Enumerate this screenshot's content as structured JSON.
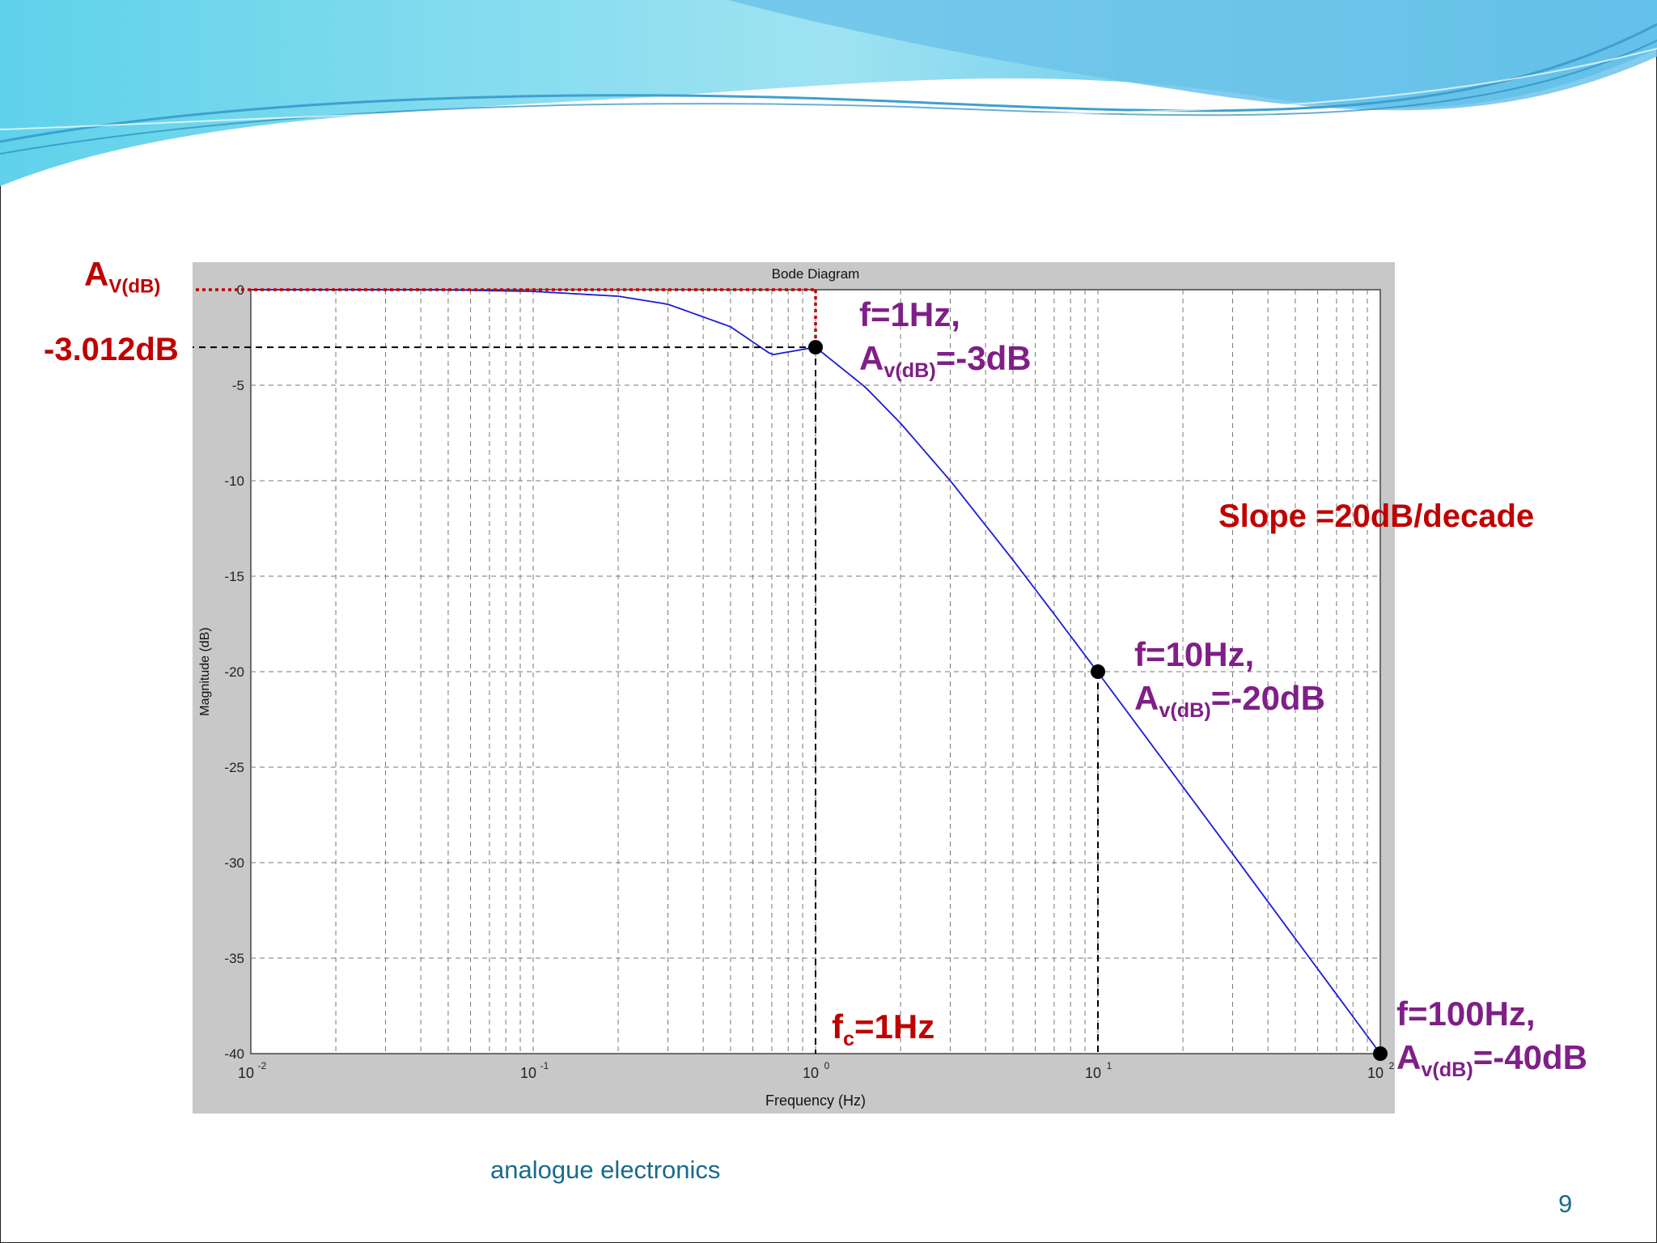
{
  "chart_data": {
    "type": "line",
    "title": "Bode Diagram",
    "xlabel": "Frequency  (Hz)",
    "ylabel": "Magnitude (dB)",
    "x_scale": "log",
    "xlim": [
      0.01,
      100
    ],
    "ylim": [
      -40,
      0
    ],
    "grid": true,
    "x_ticks": [
      {
        "base": "10",
        "exp": "-2"
      },
      {
        "base": "10",
        "exp": "-1"
      },
      {
        "base": "10",
        "exp": "0"
      },
      {
        "base": "10",
        "exp": "1"
      },
      {
        "base": "10",
        "exp": "2"
      }
    ],
    "y_ticks": [
      0,
      -5,
      -10,
      -15,
      -20,
      -25,
      -30,
      -35,
      -40
    ],
    "series": [
      {
        "color": "#1a1adb",
        "x": [
          0.01,
          0.02,
          0.05,
          0.1,
          0.2,
          0.3,
          0.5,
          0.7,
          1,
          1.5,
          2,
          3,
          5,
          7,
          10,
          20,
          30,
          50,
          70,
          100
        ],
        "y": [
          0,
          0,
          -0.01,
          -0.09,
          -0.34,
          -0.76,
          -1.94,
          -3.41,
          -3.01,
          -5.1,
          -6.99,
          -10.0,
          -14.15,
          -16.99,
          -20.04,
          -26.03,
          -29.54,
          -33.98,
          -36.9,
          -40.0
        ]
      }
    ],
    "points": [
      {
        "x": 1,
        "y": -3.012
      },
      {
        "x": 10,
        "y": -20
      },
      {
        "x": 100,
        "y": -40
      }
    ],
    "colors": {
      "curve": "#1a1adb",
      "annotation_red": "#c00000",
      "annotation_purple": "#7f1f87"
    }
  },
  "annotations": {
    "av_label": {
      "main": "A",
      "sub": "V(dB)"
    },
    "db_level": "-3.012dB",
    "p1_line1": "f=1Hz,",
    "p1_line2": {
      "main": "A",
      "sub": "v(dB)",
      "rest": "=-3dB"
    },
    "slope": "Slope =20dB/decade",
    "p2_line1": "f=10Hz,",
    "p2_line2": {
      "main": "A",
      "sub": "v(dB)",
      "rest": "=-20dB"
    },
    "fc_label": {
      "main": "f",
      "sub": "c",
      "rest": "=1Hz"
    },
    "p3_line1": "f=100Hz,",
    "p3_line2": {
      "main": "A",
      "sub": "v(dB)",
      "rest": "=-40dB"
    }
  },
  "footer": {
    "text": "analogue electronics",
    "page": "9"
  }
}
